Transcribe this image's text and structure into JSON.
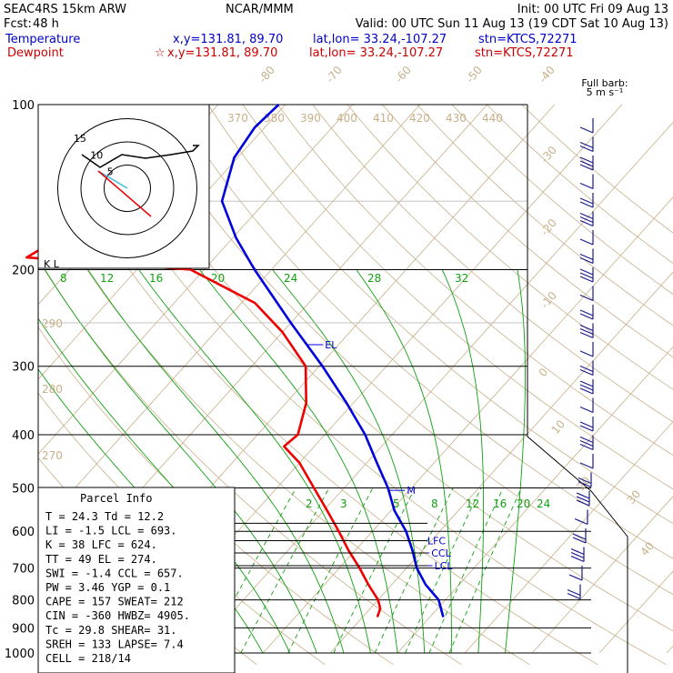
{
  "header": {
    "model": "SEAC4RS 15km ARW",
    "center": "NCAR/MMM",
    "init": "Init: 00 UTC Fri 09 Aug 13",
    "fcst_label": "Fcst:",
    "fcst_value": "48 h",
    "valid": "Valid: 00 UTC Sun 11 Aug 13 (19 CDT Sat 10 Aug 13)",
    "temp_label": "Temperature",
    "temp_xy": "x,y=131.81, 89.70",
    "temp_latlon": "lat,lon= 33.24,-107.27",
    "temp_stn": "stn=KTCS,72271",
    "dew_label": "Dewpoint",
    "dew_marker": "☆",
    "dew_xy": "x,y=131.81, 89.70",
    "dew_latlon": "lat,lon= 33.24,-107.27",
    "dew_stn": "stn=KTCS,72271"
  },
  "barb_title": "Full barb:",
  "barb_units": "5 m s⁻¹",
  "colors": {
    "temperature": "#0000dd",
    "dewpoint": "#ee0000",
    "dry_adiabat": "#c8b08a",
    "moist_adiabat": "#10a010",
    "mixing_ratio": "#10a010",
    "isobar": "#000000",
    "wind_barb": "#1a1a8c"
  },
  "chart_data": {
    "type": "skew-t",
    "y_axis": {
      "label": "",
      "scale": "log-pressure",
      "range_hPa": [
        1000,
        100
      ],
      "ticks": [
        {
          "p": 100,
          "label": "100"
        },
        {
          "p": 200,
          "label": "200"
        },
        {
          "p": 300,
          "label": "300"
        },
        {
          "p": 400,
          "label": "400"
        },
        {
          "p": 500,
          "label": "500"
        },
        {
          "p": 600,
          "label": "600"
        },
        {
          "p": 700,
          "label": "700"
        },
        {
          "p": 800,
          "label": "800"
        },
        {
          "p": 900,
          "label": "900"
        },
        {
          "p": 1000,
          "label": "1000"
        }
      ]
    },
    "isotherm_labels": [
      "-80",
      "-70",
      "-60",
      "-50",
      "-40",
      "-30",
      "-20",
      "-10",
      "0",
      "10",
      "20",
      "30",
      "40"
    ],
    "dry_adiabat_labels": [
      "370",
      "380",
      "390",
      "400",
      "410",
      "420",
      "430",
      "440",
      "290",
      "280",
      "270"
    ],
    "moist_adiabat_labels": [
      "8",
      "12",
      "16",
      "20",
      "24",
      "28",
      "32"
    ],
    "mixing_ratio_labels": [
      "2",
      "3",
      "5",
      "8",
      "12",
      "16",
      "20",
      "24"
    ],
    "series": [
      {
        "name": "Temperature",
        "color": "#0000dd",
        "points": [
          {
            "p": 860,
            "t": 22.0
          },
          {
            "p": 800,
            "t": 19.0
          },
          {
            "p": 750,
            "t": 15.0
          },
          {
            "p": 700,
            "t": 11.5
          },
          {
            "p": 650,
            "t": 8.5
          },
          {
            "p": 600,
            "t": 5.0
          },
          {
            "p": 550,
            "t": 0.5
          },
          {
            "p": 500,
            "t": -3.5
          },
          {
            "p": 450,
            "t": -8.5
          },
          {
            "p": 400,
            "t": -14.0
          },
          {
            "p": 350,
            "t": -21.0
          },
          {
            "p": 300,
            "t": -29.5
          },
          {
            "p": 250,
            "t": -40.0
          },
          {
            "p": 200,
            "t": -52.5
          },
          {
            "p": 175,
            "t": -59.5
          },
          {
            "p": 150,
            "t": -66.5
          },
          {
            "p": 125,
            "t": -70.5
          },
          {
            "p": 110,
            "t": -71.5
          },
          {
            "p": 100,
            "t": -71.0
          }
        ]
      },
      {
        "name": "Dewpoint",
        "color": "#ee0000",
        "points": [
          {
            "p": 860,
            "t": 12.2
          },
          {
            "p": 830,
            "t": 11.5
          },
          {
            "p": 800,
            "t": 10.0
          },
          {
            "p": 750,
            "t": 6.5
          },
          {
            "p": 700,
            "t": 3.0
          },
          {
            "p": 650,
            "t": -1.0
          },
          {
            "p": 600,
            "t": -5.0
          },
          {
            "p": 550,
            "t": -9.5
          },
          {
            "p": 500,
            "t": -14.5
          },
          {
            "p": 450,
            "t": -20.0
          },
          {
            "p": 420,
            "t": -24.5
          },
          {
            "p": 400,
            "t": -24.0
          },
          {
            "p": 350,
            "t": -27.0
          },
          {
            "p": 300,
            "t": -32.0
          },
          {
            "p": 260,
            "t": -40.0
          },
          {
            "p": 230,
            "t": -48.0
          },
          {
            "p": 200,
            "t": -62.0
          },
          {
            "p": 190,
            "t": -88.0
          },
          {
            "p": 170,
            "t": -85.0
          },
          {
            "p": 160,
            "t": -76.0
          },
          {
            "p": 140,
            "t": -76.0
          },
          {
            "p": 100,
            "t": -90.0
          }
        ]
      }
    ],
    "levels": [
      {
        "name": "EL",
        "label": "EL",
        "p": 274
      },
      {
        "name": "M",
        "label": "M",
        "p": 505
      },
      {
        "name": "LFC",
        "label": "LFC",
        "p": 624
      },
      {
        "name": "CCL",
        "label": "CCL",
        "p": 657
      },
      {
        "name": "LCL",
        "label": "LCL",
        "p": 693
      }
    ]
  },
  "hodograph": {
    "ring_labels": [
      "5",
      "10",
      "15"
    ],
    "ring_values_ms": [
      5,
      10,
      15
    ]
  },
  "lower_left_label": "K L",
  "parcel_info": {
    "title": "Parcel Info",
    "rows": [
      "T   =    24.3  Td =  12.2",
      "LI  =    -1.5  LCL =  693.",
      "K   =      38  LFC =  624.",
      "TT  =      49  EL  =  274.",
      "SWI =    -1.4  CCL =  657.",
      "PW  =    3.46  YGP =   0.1",
      "CAPE =    157  SWEAT=  212",
      "CIN  =   -360  HWBZ= 4905.",
      "Tc  =    29.8  SHEAR=  31.",
      "SREH =    133  LAPSE=  7.4",
      "CELL = 218/14"
    ]
  }
}
